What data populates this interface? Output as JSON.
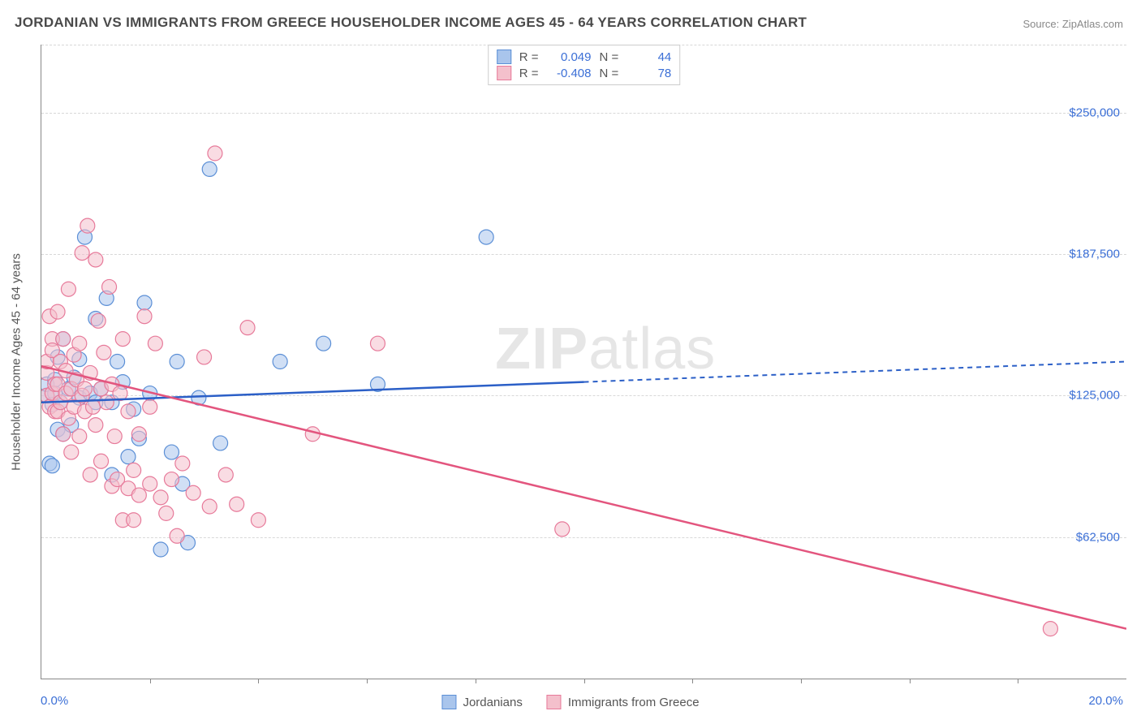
{
  "title": "JORDANIAN VS IMMIGRANTS FROM GREECE HOUSEHOLDER INCOME AGES 45 - 64 YEARS CORRELATION CHART",
  "source_label": "Source: ",
  "source_name": "ZipAtlas.com",
  "y_axis_label": "Householder Income Ages 45 - 64 years",
  "watermark_bold": "ZIP",
  "watermark_rest": "atlas",
  "chart": {
    "type": "scatter",
    "xlim": [
      0,
      20
    ],
    "ylim": [
      0,
      280000
    ],
    "x_min_label": "0.0%",
    "x_max_label": "20.0%",
    "x_tick_positions": [
      2,
      4,
      6,
      8,
      10,
      12,
      14,
      16,
      18
    ],
    "y_ticks": [
      {
        "v": 62500,
        "label": "$62,500"
      },
      {
        "v": 125000,
        "label": "$125,000"
      },
      {
        "v": 187500,
        "label": "$187,500"
      },
      {
        "v": 250000,
        "label": "$250,000"
      }
    ],
    "grid_color": "#d8d8d8",
    "background_color": "#ffffff",
    "marker_radius": 9,
    "marker_opacity": 0.55,
    "series": [
      {
        "id": "jordanians",
        "label": "Jordanians",
        "color_fill": "#a9c5ec",
        "color_stroke": "#5b8fd6",
        "trend_color": "#2b5fc7",
        "R": "0.049",
        "N": "44",
        "trend": {
          "x1": 0,
          "y1": 122000,
          "x2_solid": 10,
          "y2_solid": 131000,
          "x2_dash": 20,
          "y2_dash": 140000
        },
        "points": [
          [
            0.1,
            125000
          ],
          [
            0.1,
            130000
          ],
          [
            0.15,
            95000
          ],
          [
            0.2,
            94000
          ],
          [
            0.2,
            121000
          ],
          [
            0.25,
            126000
          ],
          [
            0.25,
            132000
          ],
          [
            0.3,
            142000
          ],
          [
            0.3,
            110000
          ],
          [
            0.35,
            122000
          ],
          [
            0.4,
            150000
          ],
          [
            0.4,
            108000
          ],
          [
            0.5,
            128000
          ],
          [
            0.55,
            112000
          ],
          [
            0.6,
            133000
          ],
          [
            0.7,
            141000
          ],
          [
            0.7,
            124000
          ],
          [
            0.8,
            195000
          ],
          [
            0.9,
            126000
          ],
          [
            1.0,
            122000
          ],
          [
            1.0,
            159000
          ],
          [
            1.1,
            128000
          ],
          [
            1.2,
            168000
          ],
          [
            1.3,
            122000
          ],
          [
            1.3,
            90000
          ],
          [
            1.4,
            140000
          ],
          [
            1.5,
            131000
          ],
          [
            1.6,
            98000
          ],
          [
            1.7,
            119000
          ],
          [
            1.8,
            106000
          ],
          [
            1.9,
            166000
          ],
          [
            2.0,
            126000
          ],
          [
            2.2,
            57000
          ],
          [
            2.4,
            100000
          ],
          [
            2.5,
            140000
          ],
          [
            2.6,
            86000
          ],
          [
            2.7,
            60000
          ],
          [
            2.9,
            124000
          ],
          [
            3.1,
            225000
          ],
          [
            3.3,
            104000
          ],
          [
            4.4,
            140000
          ],
          [
            5.2,
            148000
          ],
          [
            6.2,
            130000
          ],
          [
            8.2,
            195000
          ]
        ]
      },
      {
        "id": "greece",
        "label": "Immigrants from Greece",
        "color_fill": "#f4c0cc",
        "color_stroke": "#e77a9a",
        "trend_color": "#e3557e",
        "R": "-0.408",
        "N": "78",
        "trend": {
          "x1": 0,
          "y1": 138000,
          "x2_solid": 20,
          "y2_solid": 22000,
          "x2_dash": 20,
          "y2_dash": 22000
        },
        "points": [
          [
            0.1,
            135000
          ],
          [
            0.1,
            140000
          ],
          [
            0.1,
            125000
          ],
          [
            0.15,
            120000
          ],
          [
            0.15,
            160000
          ],
          [
            0.2,
            150000
          ],
          [
            0.2,
            126000
          ],
          [
            0.2,
            145000
          ],
          [
            0.25,
            118000
          ],
          [
            0.25,
            130000
          ],
          [
            0.3,
            118000
          ],
          [
            0.3,
            162000
          ],
          [
            0.3,
            130000
          ],
          [
            0.35,
            140000
          ],
          [
            0.35,
            122000
          ],
          [
            0.4,
            108000
          ],
          [
            0.4,
            150000
          ],
          [
            0.45,
            126000
          ],
          [
            0.45,
            136000
          ],
          [
            0.5,
            115000
          ],
          [
            0.5,
            172000
          ],
          [
            0.55,
            100000
          ],
          [
            0.55,
            128000
          ],
          [
            0.6,
            143000
          ],
          [
            0.6,
            120000
          ],
          [
            0.65,
            132000
          ],
          [
            0.7,
            107000
          ],
          [
            0.7,
            148000
          ],
          [
            0.75,
            125000
          ],
          [
            0.75,
            188000
          ],
          [
            0.8,
            118000
          ],
          [
            0.8,
            128000
          ],
          [
            0.85,
            200000
          ],
          [
            0.9,
            90000
          ],
          [
            0.9,
            135000
          ],
          [
            0.95,
            120000
          ],
          [
            1.0,
            185000
          ],
          [
            1.0,
            112000
          ],
          [
            1.05,
            158000
          ],
          [
            1.1,
            96000
          ],
          [
            1.1,
            128000
          ],
          [
            1.15,
            144000
          ],
          [
            1.2,
            122000
          ],
          [
            1.25,
            173000
          ],
          [
            1.3,
            85000
          ],
          [
            1.3,
            130000
          ],
          [
            1.35,
            107000
          ],
          [
            1.4,
            88000
          ],
          [
            1.45,
            126000
          ],
          [
            1.5,
            70000
          ],
          [
            1.5,
            150000
          ],
          [
            1.6,
            84000
          ],
          [
            1.6,
            118000
          ],
          [
            1.7,
            92000
          ],
          [
            1.7,
            70000
          ],
          [
            1.8,
            81000
          ],
          [
            1.8,
            108000
          ],
          [
            1.9,
            160000
          ],
          [
            2.0,
            86000
          ],
          [
            2.0,
            120000
          ],
          [
            2.1,
            148000
          ],
          [
            2.2,
            80000
          ],
          [
            2.3,
            73000
          ],
          [
            2.4,
            88000
          ],
          [
            2.5,
            63000
          ],
          [
            2.6,
            95000
          ],
          [
            2.8,
            82000
          ],
          [
            3.0,
            142000
          ],
          [
            3.1,
            76000
          ],
          [
            3.2,
            232000
          ],
          [
            3.4,
            90000
          ],
          [
            3.6,
            77000
          ],
          [
            3.8,
            155000
          ],
          [
            4.0,
            70000
          ],
          [
            5.0,
            108000
          ],
          [
            6.2,
            148000
          ],
          [
            9.6,
            66000
          ],
          [
            18.6,
            22000
          ]
        ]
      }
    ]
  },
  "top_legend": [
    {
      "series": 0,
      "r_label": "R =",
      "n_label": "N ="
    },
    {
      "series": 1,
      "r_label": "R =",
      "n_label": "N ="
    }
  ]
}
